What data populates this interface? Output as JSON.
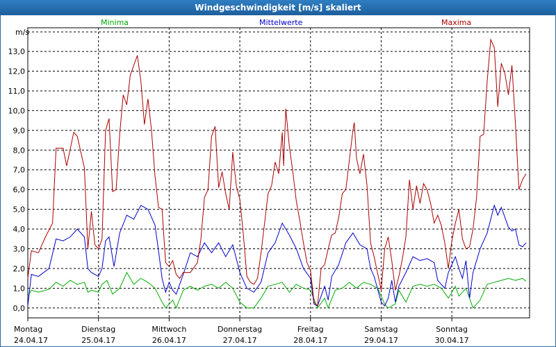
{
  "window": {
    "title": "Windgeschwindigkeit [m/s] skaliert"
  },
  "chart_data": {
    "type": "line",
    "title": "Windgeschwindigkeit [m/s] skaliert",
    "ylabel": "m/s",
    "xlabel": "",
    "ylim": [
      -0.5,
      14.2
    ],
    "y_ticks": [
      "0,0",
      "1,0",
      "2,0",
      "3,0",
      "4,0",
      "5,0",
      "6,0",
      "7,0",
      "8,0",
      "9,0",
      "10,0",
      "11,0",
      "12,0",
      "13,0"
    ],
    "y_tick_values": [
      0,
      1,
      2,
      3,
      4,
      5,
      6,
      7,
      8,
      9,
      10,
      11,
      12,
      13
    ],
    "x_range": [
      0,
      7.1
    ],
    "grid": true,
    "days": [
      {
        "weekday": "Montag",
        "date": "24.04.17",
        "x": 0
      },
      {
        "weekday": "Dienstag",
        "date": "25.04.17",
        "x": 1
      },
      {
        "weekday": "Mittwoch",
        "date": "26.04.17",
        "x": 2
      },
      {
        "weekday": "Donnerstag",
        "date": "27.04.17",
        "x": 3
      },
      {
        "weekday": "Freitag",
        "date": "28.04.17",
        "x": 4
      },
      {
        "weekday": "Samstag",
        "date": "29.04.17",
        "x": 5
      },
      {
        "weekday": "Sonntag",
        "date": "30.04.17",
        "x": 6
      }
    ],
    "series": [
      {
        "name": "Minima",
        "color": "#00aa00",
        "points": [
          [
            0,
            0.6
          ],
          [
            0.05,
            0.9
          ],
          [
            0.15,
            0.8
          ],
          [
            0.3,
            0.95
          ],
          [
            0.4,
            1.3
          ],
          [
            0.5,
            1.1
          ],
          [
            0.6,
            1.4
          ],
          [
            0.7,
            1.2
          ],
          [
            0.8,
            1.3
          ],
          [
            0.85,
            0.8
          ],
          [
            0.9,
            0.9
          ],
          [
            1.0,
            0.8
          ],
          [
            1.05,
            1.2
          ],
          [
            1.12,
            1.4
          ],
          [
            1.2,
            0.7
          ],
          [
            1.3,
            1.0
          ],
          [
            1.4,
            1.8
          ],
          [
            1.5,
            1.2
          ],
          [
            1.6,
            1.5
          ],
          [
            1.7,
            1.3
          ],
          [
            1.8,
            1.0
          ],
          [
            1.9,
            0.3
          ],
          [
            1.95,
            0.0
          ],
          [
            2.05,
            0.4
          ],
          [
            2.1,
            0.0
          ],
          [
            2.2,
            0.9
          ],
          [
            2.3,
            1.1
          ],
          [
            2.4,
            0.9
          ],
          [
            2.5,
            1.1
          ],
          [
            2.6,
            1.2
          ],
          [
            2.7,
            1.0
          ],
          [
            2.8,
            1.3
          ],
          [
            2.9,
            1.0
          ],
          [
            3.0,
            0.3
          ],
          [
            3.1,
            0.0
          ],
          [
            3.2,
            0.0
          ],
          [
            3.3,
            0.5
          ],
          [
            3.4,
            1.1
          ],
          [
            3.5,
            1.2
          ],
          [
            3.6,
            1.3
          ],
          [
            3.7,
            0.8
          ],
          [
            3.8,
            1.2
          ],
          [
            3.9,
            1.0
          ],
          [
            4.0,
            0.9
          ],
          [
            4.1,
            0.0
          ],
          [
            4.2,
            0.5
          ],
          [
            4.25,
            0.0
          ],
          [
            4.35,
            0.9
          ],
          [
            4.45,
            1.0
          ],
          [
            4.55,
            1.3
          ],
          [
            4.65,
            1.0
          ],
          [
            4.75,
            1.3
          ],
          [
            4.85,
            1.2
          ],
          [
            4.95,
            1.0
          ],
          [
            5.05,
            0.2
          ],
          [
            5.1,
            0.0
          ],
          [
            5.2,
            0.2
          ],
          [
            5.25,
            0.9
          ],
          [
            5.35,
            0.3
          ],
          [
            5.45,
            1.1
          ],
          [
            5.55,
            1.2
          ],
          [
            5.65,
            1.1
          ],
          [
            5.75,
            1.2
          ],
          [
            5.85,
            1.0
          ],
          [
            5.95,
            0.5
          ],
          [
            6.05,
            1.1
          ],
          [
            6.1,
            0.6
          ],
          [
            6.2,
            1.0
          ],
          [
            6.3,
            0.0
          ],
          [
            6.4,
            0.4
          ],
          [
            6.5,
            1.2
          ],
          [
            6.6,
            1.3
          ],
          [
            6.7,
            1.4
          ],
          [
            6.8,
            1.5
          ],
          [
            6.9,
            1.4
          ],
          [
            7.0,
            1.5
          ],
          [
            7.05,
            1.35
          ]
        ]
      },
      {
        "name": "Mittelwerte",
        "color": "#0000cc",
        "points": [
          [
            0,
            0.1
          ],
          [
            0.05,
            1.7
          ],
          [
            0.15,
            1.6
          ],
          [
            0.3,
            2.0
          ],
          [
            0.4,
            3.5
          ],
          [
            0.5,
            3.4
          ],
          [
            0.6,
            3.6
          ],
          [
            0.7,
            4.0
          ],
          [
            0.8,
            3.6
          ],
          [
            0.85,
            2.0
          ],
          [
            0.9,
            1.8
          ],
          [
            1.0,
            1.6
          ],
          [
            1.05,
            2.0
          ],
          [
            1.1,
            3.4
          ],
          [
            1.15,
            3.6
          ],
          [
            1.22,
            2.1
          ],
          [
            1.3,
            3.8
          ],
          [
            1.4,
            4.7
          ],
          [
            1.5,
            4.5
          ],
          [
            1.6,
            5.2
          ],
          [
            1.7,
            5.0
          ],
          [
            1.8,
            4.2
          ],
          [
            1.85,
            2.9
          ],
          [
            1.9,
            1.5
          ],
          [
            1.95,
            0.8
          ],
          [
            2.0,
            1.3
          ],
          [
            2.05,
            0.9
          ],
          [
            2.1,
            0.7
          ],
          [
            2.2,
            1.7
          ],
          [
            2.3,
            2.8
          ],
          [
            2.4,
            2.6
          ],
          [
            2.5,
            3.3
          ],
          [
            2.6,
            2.8
          ],
          [
            2.7,
            3.3
          ],
          [
            2.8,
            2.6
          ],
          [
            2.9,
            3.2
          ],
          [
            3.0,
            1.8
          ],
          [
            3.1,
            1.0
          ],
          [
            3.2,
            0.8
          ],
          [
            3.3,
            1.3
          ],
          [
            3.4,
            2.8
          ],
          [
            3.5,
            3.3
          ],
          [
            3.6,
            4.3
          ],
          [
            3.7,
            3.7
          ],
          [
            3.8,
            3.0
          ],
          [
            3.9,
            2.0
          ],
          [
            4.0,
            1.5
          ],
          [
            4.05,
            0.2
          ],
          [
            4.1,
            0.1
          ],
          [
            4.15,
            0.6
          ],
          [
            4.2,
            1.1
          ],
          [
            4.25,
            0.4
          ],
          [
            4.3,
            1.6
          ],
          [
            4.4,
            2.2
          ],
          [
            4.5,
            3.3
          ],
          [
            4.6,
            3.8
          ],
          [
            4.7,
            3.2
          ],
          [
            4.8,
            3.0
          ],
          [
            4.85,
            2.0
          ],
          [
            4.9,
            1.6
          ],
          [
            5.0,
            0.3
          ],
          [
            5.05,
            0.1
          ],
          [
            5.1,
            0.5
          ],
          [
            5.15,
            1.4
          ],
          [
            5.2,
            0.3
          ],
          [
            5.25,
            1.1
          ],
          [
            5.35,
            1.8
          ],
          [
            5.45,
            2.6
          ],
          [
            5.55,
            2.4
          ],
          [
            5.65,
            2.5
          ],
          [
            5.75,
            2.3
          ],
          [
            5.8,
            1.4
          ],
          [
            5.85,
            1.2
          ],
          [
            5.9,
            1.0
          ],
          [
            5.95,
            1.8
          ],
          [
            6.05,
            2.6
          ],
          [
            6.1,
            2.0
          ],
          [
            6.15,
            1.5
          ],
          [
            6.2,
            2.4
          ],
          [
            6.25,
            0.5
          ],
          [
            6.3,
            1.8
          ],
          [
            6.4,
            3.0
          ],
          [
            6.5,
            3.8
          ],
          [
            6.6,
            5.2
          ],
          [
            6.65,
            4.7
          ],
          [
            6.7,
            5.1
          ],
          [
            6.8,
            4.1
          ],
          [
            6.85,
            3.9
          ],
          [
            6.9,
            4.0
          ],
          [
            6.95,
            3.2
          ],
          [
            7.0,
            3.1
          ],
          [
            7.05,
            3.3
          ]
        ]
      },
      {
        "name": "Maxima",
        "color": "#aa0000",
        "points": [
          [
            0,
            1.5
          ],
          [
            0.05,
            2.9
          ],
          [
            0.15,
            2.8
          ],
          [
            0.25,
            3.6
          ],
          [
            0.35,
            4.3
          ],
          [
            0.4,
            8.1
          ],
          [
            0.5,
            8.1
          ],
          [
            0.55,
            7.2
          ],
          [
            0.65,
            8.9
          ],
          [
            0.7,
            8.7
          ],
          [
            0.8,
            7.1
          ],
          [
            0.85,
            3.0
          ],
          [
            0.9,
            4.9
          ],
          [
            0.95,
            3.2
          ],
          [
            1.0,
            3.0
          ],
          [
            1.05,
            3.5
          ],
          [
            1.1,
            9.0
          ],
          [
            1.15,
            9.6
          ],
          [
            1.2,
            5.9
          ],
          [
            1.25,
            6.0
          ],
          [
            1.3,
            8.8
          ],
          [
            1.35,
            10.8
          ],
          [
            1.4,
            10.3
          ],
          [
            1.45,
            11.8
          ],
          [
            1.55,
            12.8
          ],
          [
            1.6,
            11.5
          ],
          [
            1.65,
            9.3
          ],
          [
            1.7,
            10.6
          ],
          [
            1.75,
            9.0
          ],
          [
            1.8,
            6.7
          ],
          [
            1.85,
            5.1
          ],
          [
            1.9,
            5.0
          ],
          [
            1.95,
            2.3
          ],
          [
            2.0,
            2.1
          ],
          [
            2.05,
            2.4
          ],
          [
            2.1,
            1.7
          ],
          [
            2.15,
            1.5
          ],
          [
            2.2,
            1.8
          ],
          [
            2.3,
            1.8
          ],
          [
            2.4,
            2.3
          ],
          [
            2.45,
            3.5
          ],
          [
            2.5,
            5.6
          ],
          [
            2.55,
            6.0
          ],
          [
            2.6,
            8.7
          ],
          [
            2.65,
            9.2
          ],
          [
            2.7,
            6.1
          ],
          [
            2.75,
            6.9
          ],
          [
            2.8,
            5.8
          ],
          [
            2.85,
            5.0
          ],
          [
            2.9,
            7.9
          ],
          [
            2.95,
            6.2
          ],
          [
            3.0,
            5.5
          ],
          [
            3.05,
            3.7
          ],
          [
            3.1,
            1.6
          ],
          [
            3.15,
            1.3
          ],
          [
            3.2,
            1.2
          ],
          [
            3.25,
            1.5
          ],
          [
            3.3,
            2.8
          ],
          [
            3.35,
            4.3
          ],
          [
            3.4,
            5.8
          ],
          [
            3.45,
            6.2
          ],
          [
            3.5,
            7.4
          ],
          [
            3.55,
            6.8
          ],
          [
            3.6,
            8.9
          ],
          [
            3.62,
            7.2
          ],
          [
            3.65,
            10.1
          ],
          [
            3.7,
            8.2
          ],
          [
            3.75,
            6.9
          ],
          [
            3.8,
            5.4
          ],
          [
            3.85,
            4.4
          ],
          [
            3.9,
            3.3
          ],
          [
            3.95,
            2.3
          ],
          [
            4.0,
            1.9
          ],
          [
            4.05,
            0.3
          ],
          [
            4.1,
            0.1
          ],
          [
            4.15,
            2.0
          ],
          [
            4.2,
            2.2
          ],
          [
            4.25,
            3.0
          ],
          [
            4.3,
            3.7
          ],
          [
            4.35,
            3.8
          ],
          [
            4.4,
            4.6
          ],
          [
            4.45,
            5.8
          ],
          [
            4.5,
            6.0
          ],
          [
            4.55,
            7.5
          ],
          [
            4.6,
            9.0
          ],
          [
            4.62,
            9.4
          ],
          [
            4.65,
            7.6
          ],
          [
            4.7,
            6.8
          ],
          [
            4.75,
            7.8
          ],
          [
            4.8,
            6.2
          ],
          [
            4.85,
            3.3
          ],
          [
            4.9,
            2.6
          ],
          [
            5.0,
            0.9
          ],
          [
            5.05,
            3.0
          ],
          [
            5.1,
            3.6
          ],
          [
            5.15,
            2.4
          ],
          [
            5.2,
            0.9
          ],
          [
            5.25,
            1.6
          ],
          [
            5.3,
            2.5
          ],
          [
            5.35,
            3.6
          ],
          [
            5.4,
            6.5
          ],
          [
            5.45,
            5.0
          ],
          [
            5.5,
            6.2
          ],
          [
            5.55,
            5.3
          ],
          [
            5.6,
            6.3
          ],
          [
            5.65,
            6.0
          ],
          [
            5.7,
            5.3
          ],
          [
            5.75,
            4.3
          ],
          [
            5.8,
            4.7
          ],
          [
            5.85,
            4.2
          ],
          [
            5.9,
            3.3
          ],
          [
            5.95,
            2.0
          ],
          [
            6.0,
            3.4
          ],
          [
            6.05,
            4.3
          ],
          [
            6.1,
            5.0
          ],
          [
            6.15,
            3.5
          ],
          [
            6.2,
            3.0
          ],
          [
            6.25,
            3.1
          ],
          [
            6.3,
            4.0
          ],
          [
            6.35,
            5.6
          ],
          [
            6.4,
            8.7
          ],
          [
            6.45,
            8.8
          ],
          [
            6.5,
            11.5
          ],
          [
            6.55,
            13.6
          ],
          [
            6.6,
            13.2
          ],
          [
            6.65,
            10.2
          ],
          [
            6.7,
            12.4
          ],
          [
            6.75,
            11.9
          ],
          [
            6.8,
            10.8
          ],
          [
            6.85,
            12.3
          ],
          [
            6.9,
            9.3
          ],
          [
            6.95,
            6.0
          ],
          [
            7.0,
            6.5
          ],
          [
            7.05,
            6.8
          ]
        ]
      }
    ]
  }
}
